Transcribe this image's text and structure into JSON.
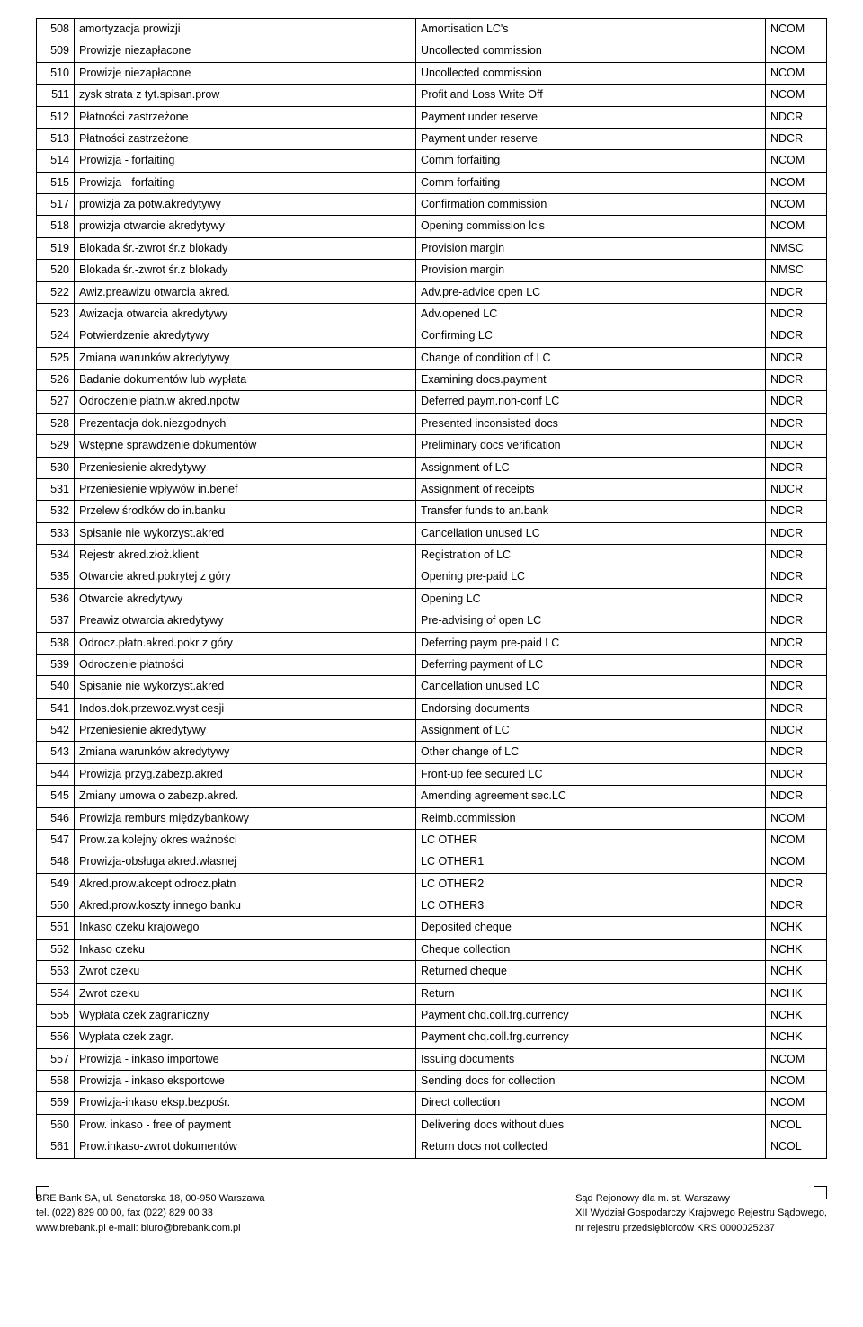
{
  "table": {
    "columns": [
      "num",
      "pl",
      "en",
      "code"
    ],
    "rows": [
      [
        "508",
        "amortyzacja prowizji",
        "Amortisation LC's",
        "NCOM"
      ],
      [
        "509",
        "Prowizje niezapłacone",
        "Uncollected commission",
        "NCOM"
      ],
      [
        "510",
        "Prowizje niezapłacone",
        "Uncollected commission",
        "NCOM"
      ],
      [
        "511",
        "zysk strata z tyt.spisan.prow",
        "Profit and Loss Write Off",
        "NCOM"
      ],
      [
        "512",
        "Płatności zastrzeżone",
        "Payment under reserve",
        "NDCR"
      ],
      [
        "513",
        "Płatności zastrzeżone",
        "Payment under reserve",
        "NDCR"
      ],
      [
        "514",
        "Prowizja - forfaiting",
        "Comm forfaiting",
        "NCOM"
      ],
      [
        "515",
        "Prowizja - forfaiting",
        "Comm forfaiting",
        "NCOM"
      ],
      [
        "517",
        "prowizja za potw.akredytywy",
        "Confirmation commission",
        "NCOM"
      ],
      [
        "518",
        "prowizja otwarcie akredytywy",
        "Opening commission lc's",
        "NCOM"
      ],
      [
        "519",
        "Blokada śr.-zwrot śr.z blokady",
        "Provision margin",
        "NMSC"
      ],
      [
        "520",
        "Blokada śr.-zwrot śr.z blokady",
        "Provision margin",
        "NMSC"
      ],
      [
        "522",
        "Awiz.preawizu otwarcia akred.",
        "Adv.pre-advice open LC",
        "NDCR"
      ],
      [
        "523",
        "Awizacja otwarcia akredytywy",
        "Adv.opened LC",
        "NDCR"
      ],
      [
        "524",
        "Potwierdzenie akredytywy",
        "Confirming LC",
        "NDCR"
      ],
      [
        "525",
        "Zmiana warunków akredytywy",
        "Change of condition of LC",
        "NDCR"
      ],
      [
        "526",
        "Badanie dokumentów lub wypłata",
        "Examining docs.payment",
        "NDCR"
      ],
      [
        "527",
        "Odroczenie płatn.w akred.npotw",
        "Deferred paym.non-conf LC",
        "NDCR"
      ],
      [
        "528",
        "Prezentacja dok.niezgodnych",
        "Presented inconsisted docs",
        "NDCR"
      ],
      [
        "529",
        "Wstępne sprawdzenie dokumentów",
        "Preliminary docs verification",
        "NDCR"
      ],
      [
        "530",
        "Przeniesienie akredytywy",
        "Assignment of LC",
        "NDCR"
      ],
      [
        "531",
        "Przeniesienie wpływów in.benef",
        "Assignment of receipts",
        "NDCR"
      ],
      [
        "532",
        "Przelew środków do in.banku",
        "Transfer funds to an.bank",
        "NDCR"
      ],
      [
        "533",
        "Spisanie nie wykorzyst.akred",
        "Cancellation unused LC",
        "NDCR"
      ],
      [
        "534",
        "Rejestr akred.złoż.klient",
        "Registration of LC",
        "NDCR"
      ],
      [
        "535",
        "Otwarcie akred.pokrytej z góry",
        "Opening pre-paid LC",
        "NDCR"
      ],
      [
        "536",
        "Otwarcie akredytywy",
        "Opening LC",
        "NDCR"
      ],
      [
        "537",
        "Preawiz otwarcia akredytywy",
        "Pre-advising of open LC",
        "NDCR"
      ],
      [
        "538",
        "Odrocz.płatn.akred.pokr z góry",
        "Deferring paym pre-paid LC",
        "NDCR"
      ],
      [
        "539",
        "Odroczenie płatności",
        "Deferring payment of LC",
        "NDCR"
      ],
      [
        "540",
        "Spisanie nie wykorzyst.akred",
        "Cancellation unused LC",
        "NDCR"
      ],
      [
        "541",
        "Indos.dok.przewoz.wyst.cesji",
        "Endorsing documents",
        "NDCR"
      ],
      [
        "542",
        "Przeniesienie akredytywy",
        "Assignment of LC",
        "NDCR"
      ],
      [
        "543",
        "Zmiana warunków akredytywy",
        "Other change of LC",
        "NDCR"
      ],
      [
        "544",
        "Prowizja przyg.zabezp.akred",
        "Front-up fee secured LC",
        "NDCR"
      ],
      [
        "545",
        "Zmiany umowa o zabezp.akred.",
        "Amending agreement sec.LC",
        "NDCR"
      ],
      [
        "546",
        "Prowizja remburs międzybankowy",
        "Reimb.commission",
        "NCOM"
      ],
      [
        "547",
        "Prow.za kolejny okres ważności",
        "LC OTHER",
        "NCOM"
      ],
      [
        "548",
        "Prowizja-obsługa akred.własnej",
        "LC OTHER1",
        "NCOM"
      ],
      [
        "549",
        "Akred.prow.akcept odrocz.płatn",
        "LC OTHER2",
        "NDCR"
      ],
      [
        "550",
        "Akred.prow.koszty innego banku",
        "LC OTHER3",
        "NDCR"
      ],
      [
        "551",
        "Inkaso czeku krajowego",
        "Deposited cheque",
        "NCHK"
      ],
      [
        "552",
        "Inkaso czeku",
        "Cheque collection",
        "NCHK"
      ],
      [
        "553",
        "Zwrot czeku",
        "Returned cheque",
        "NCHK"
      ],
      [
        "554",
        "Zwrot czeku",
        "Return",
        "NCHK"
      ],
      [
        "555",
        "Wypłata czek zagraniczny",
        "Payment chq.coll.frg.currency",
        "NCHK"
      ],
      [
        "556",
        "Wypłata czek zagr.",
        "Payment chq.coll.frg.currency",
        "NCHK"
      ],
      [
        "557",
        "Prowizja - inkaso importowe",
        "Issuing documents",
        "NCOM"
      ],
      [
        "558",
        "Prowizja - inkaso eksportowe",
        "Sending docs for collection",
        "NCOM"
      ],
      [
        "559",
        "Prowizja-inkaso eksp.bezpośr.",
        "Direct collection",
        "NCOM"
      ],
      [
        "560",
        "Prow. inkaso - free of payment",
        "Delivering docs without dues",
        "NCOL"
      ],
      [
        "561",
        "Prow.inkaso-zwrot dokumentów",
        "Return docs not collected",
        "NCOL"
      ]
    ]
  },
  "footer": {
    "left": {
      "line1": "BRE Bank SA, ul. Senatorska 18, 00-950 Warszawa",
      "line2": "tel. (022) 829 00 00, fax (022) 829 00 33",
      "line3": "www.brebank.pl    e-mail: biuro@brebank.com.pl"
    },
    "right": {
      "line1": "Sąd Rejonowy dla m. st. Warszawy",
      "line2": "XII Wydział Gospodarczy Krajowego Rejestru Sądowego,",
      "line3": "nr rejestru przedsiębiorców KRS 0000025237"
    }
  }
}
